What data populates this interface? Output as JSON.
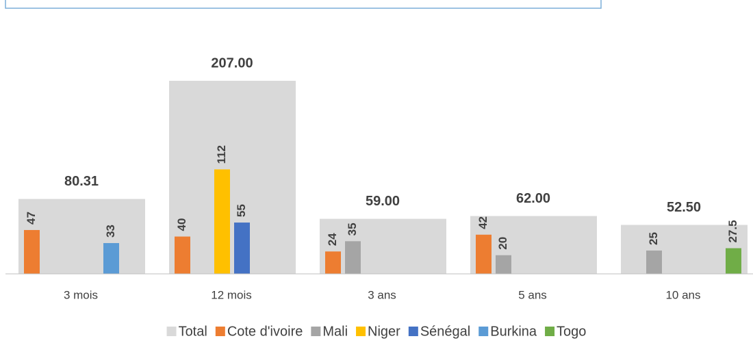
{
  "chart_data": {
    "type": "bar",
    "categories": [
      "3 mois",
      "12 mois",
      "3 ans",
      "5 ans",
      "10 ans"
    ],
    "series": [
      {
        "name": "Total",
        "color": "#d9d9d9",
        "values": [
          80.31,
          207,
          59,
          62,
          52.5
        ],
        "value_labels": [
          "80.31",
          "207.00",
          "59.00",
          "62.00",
          "52.50"
        ]
      },
      {
        "name": "Cote d'ivoire",
        "color": "#ed7d31",
        "values": [
          47,
          40,
          24,
          42,
          null
        ]
      },
      {
        "name": "Mali",
        "color": "#a5a5a5",
        "values": [
          null,
          null,
          35,
          20,
          25
        ]
      },
      {
        "name": "Niger",
        "color": "#ffc000",
        "values": [
          null,
          112,
          null,
          null,
          null
        ]
      },
      {
        "name": "Sénégal",
        "color": "#4472c4",
        "values": [
          null,
          55,
          null,
          null,
          null
        ]
      },
      {
        "name": "Burkina",
        "color": "#5b9bd5",
        "values": [
          33,
          null,
          null,
          null,
          null
        ]
      },
      {
        "name": "Togo",
        "color": "#70ad47",
        "values": [
          null,
          null,
          null,
          null,
          27.5
        ]
      }
    ],
    "ylim": [
      0,
      250
    ]
  }
}
